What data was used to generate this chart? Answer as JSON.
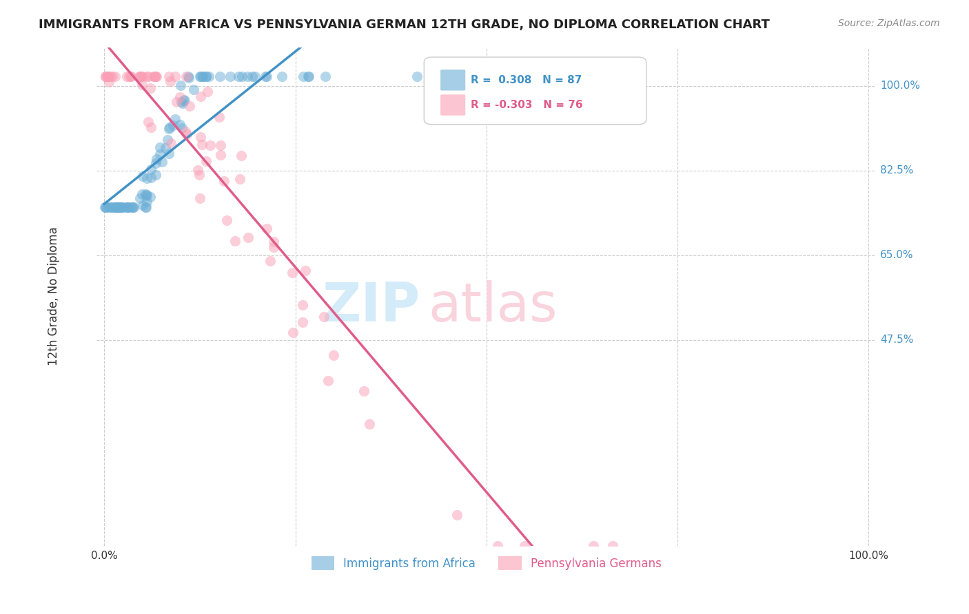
{
  "title": "IMMIGRANTS FROM AFRICA VS PENNSYLVANIA GERMAN 12TH GRADE, NO DIPLOMA CORRELATION CHART",
  "source": "Source: ZipAtlas.com",
  "ylabel": "12th Grade, No Diploma",
  "legend_label1": "Immigrants from Africa",
  "legend_label2": "Pennsylvania Germans",
  "r1": 0.308,
  "n1": 87,
  "r2": -0.303,
  "n2": 76,
  "color_blue": "#6baed6",
  "color_pink": "#fa9fb5",
  "trendline_blue": "#4292c6",
  "trendline_pink": "#e05c8a",
  "grid_color": "#cccccc",
  "ytick_positions": [
    1.0,
    0.825,
    0.65,
    0.475
  ],
  "ytick_labels": [
    "100.0%",
    "82.5%",
    "65.0%",
    "47.5%"
  ],
  "xlim": [
    -0.01,
    1.01
  ],
  "ylim": [
    0.05,
    1.08
  ]
}
